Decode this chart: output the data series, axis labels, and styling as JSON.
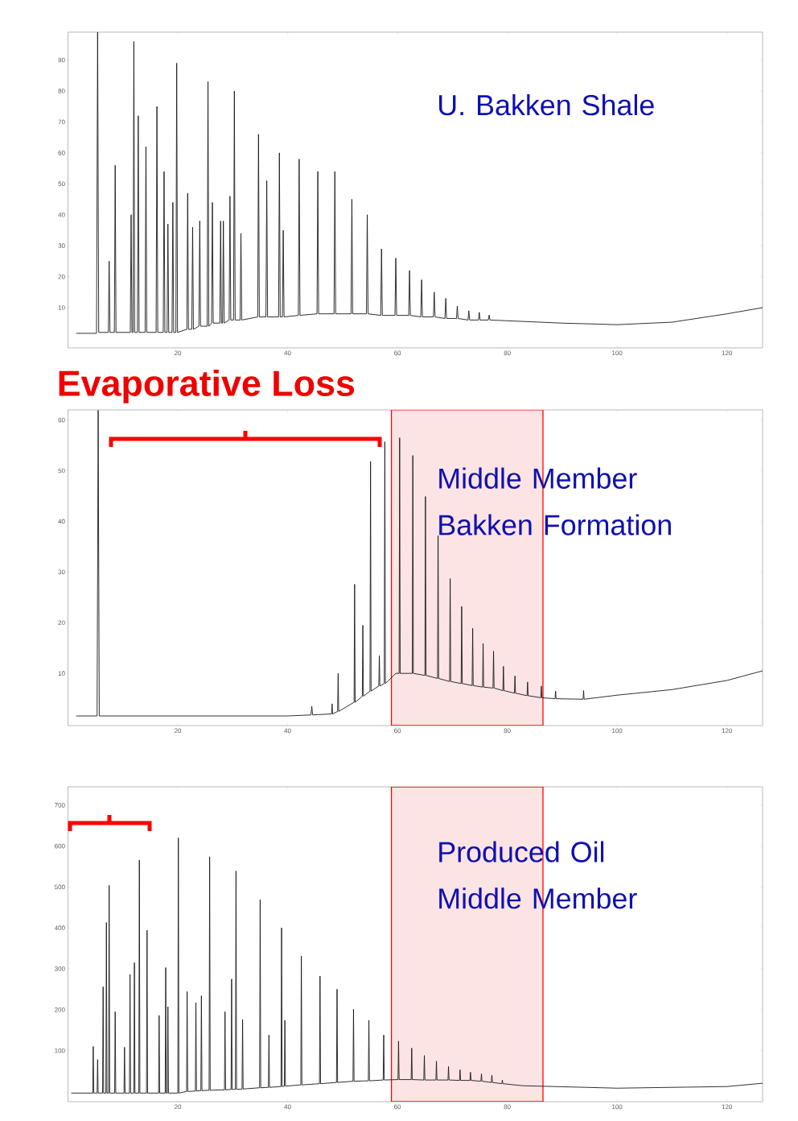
{
  "chart_data": [
    {
      "type": "line",
      "xlim": [
        0,
        126.5
      ],
      "ylim": [
        -3,
        99
      ],
      "xticks": [
        20,
        40,
        60,
        80,
        100,
        120
      ],
      "yticks": [
        10,
        20,
        30,
        40,
        50,
        60,
        70,
        80,
        90
      ],
      "annotations": [
        "U. Bakken Shale"
      ],
      "x": [
        1.5,
        5.2,
        5.4,
        5.6,
        7.35,
        7.5,
        7.65,
        8.45,
        8.6,
        8.75,
        11.35,
        11.5,
        11.65,
        11.85,
        12.0,
        12.15,
        12.65,
        12.8,
        12.95,
        14.05,
        14.2,
        14.35,
        16.05,
        16.2,
        16.35,
        17.35,
        17.5,
        17.65,
        18.05,
        18.2,
        18.35,
        18.95,
        19.1,
        19.25,
        19.65,
        19.8,
        19.95,
        21.65,
        21.8,
        21.95,
        22.55,
        22.7,
        22.85,
        23.85,
        24.0,
        24.15,
        25.35,
        25.5,
        25.65,
        26.15,
        26.3,
        26.45,
        27.65,
        27.8,
        27.95,
        28.15,
        28.3,
        28.45,
        29.35,
        29.5,
        29.65,
        30.15,
        30.3,
        30.45,
        31.35,
        31.5,
        31.65,
        34.55,
        34.7,
        34.85,
        36.05,
        36.2,
        36.35,
        38.35,
        38.5,
        38.65,
        39.05,
        39.2,
        39.35,
        41.95,
        42.1,
        42.25,
        45.35,
        45.5,
        45.65,
        48.45,
        48.6,
        48.75,
        51.55,
        51.7,
        51.85,
        54.35,
        54.5,
        54.65,
        56.95,
        57.1,
        57.25,
        59.55,
        59.7,
        59.85,
        62.05,
        62.2,
        62.35,
        64.25,
        64.4,
        64.55,
        66.55,
        66.7,
        66.85,
        68.65,
        68.8,
        68.95,
        70.75,
        70.9,
        71.05,
        72.85,
        73.0,
        73.15,
        74.75,
        74.9,
        75.05,
        76.55,
        76.7,
        76.85,
        90,
        100,
        110,
        120,
        126.5
      ],
      "series": [
        {
          "color": "#1a1a1a",
          "values": [
            1.7,
            1.7,
            99,
            2,
            2,
            25,
            2,
            2,
            56,
            2,
            2,
            40,
            2,
            2,
            96,
            2,
            2,
            72,
            2,
            2,
            62,
            2,
            2,
            75,
            2,
            2,
            54,
            2,
            2,
            37,
            2,
            2,
            44,
            2,
            2,
            89,
            2,
            3,
            47,
            3,
            3,
            36,
            3,
            4,
            38,
            4,
            4,
            83,
            4,
            5,
            44,
            5,
            5,
            38,
            5,
            5,
            38,
            5,
            6,
            46,
            6,
            6,
            80,
            6,
            6,
            34,
            6,
            7,
            66,
            7,
            7,
            51,
            7,
            7,
            60,
            7,
            7,
            35,
            7,
            7.5,
            58,
            7.5,
            8,
            54,
            8,
            8,
            54,
            8,
            8,
            45,
            8,
            8,
            40,
            8,
            7.5,
            29,
            7.5,
            7.5,
            26,
            7.5,
            7.5,
            22,
            7.5,
            7,
            19,
            7,
            7,
            15,
            7,
            6.5,
            13,
            6.5,
            6.5,
            10.5,
            6.5,
            6,
            9,
            6,
            6,
            8.5,
            6,
            6,
            7.6,
            6,
            5,
            4.5,
            5.3,
            8,
            10
          ]
        }
      ]
    },
    {
      "type": "line",
      "title": "Evaporative Loss",
      "xlim": [
        0,
        126.5
      ],
      "ylim": [
        -0.3,
        62
      ],
      "xticks": [
        20,
        40,
        60,
        80,
        100,
        120
      ],
      "yticks": [
        10,
        20,
        30,
        40,
        50,
        60
      ],
      "annotations": [
        "Middle Member Bakken Formation"
      ],
      "bands": [
        {
          "axis": "x",
          "from": 58.9,
          "to": 86.5,
          "color": "#fde4e4"
        }
      ],
      "x": [
        1.5,
        5.3,
        5.5,
        5.7,
        40,
        44.25,
        44.4,
        44.55,
        48.0,
        48.1,
        48.2,
        49.1,
        49.2,
        49.3,
        52.1,
        52.2,
        52.3,
        53.6,
        53.7,
        53.8,
        55.0,
        55.1,
        55.2,
        56.6,
        56.7,
        56.8,
        57.6,
        57.7,
        57.8,
        59.7,
        60.3,
        60.4,
        60.5,
        62.7,
        62.8,
        62.9,
        65.0,
        65.1,
        65.2,
        67.3,
        67.4,
        67.5,
        69.5,
        69.6,
        69.7,
        71.6,
        71.7,
        71.8,
        73.6,
        73.7,
        73.8,
        75.5,
        75.6,
        75.7,
        77.4,
        77.5,
        77.6,
        79.2,
        79.3,
        79.4,
        81.3,
        81.4,
        81.5,
        83.6,
        83.7,
        83.8,
        86.1,
        86.2,
        86.3,
        88.7,
        88.8,
        88.9,
        93.8,
        93.9,
        94.0,
        100,
        110,
        120,
        126.5
      ],
      "series": [
        {
          "color": "#1a1a1a",
          "values": [
            1.6,
            1.6,
            61.9,
            1.6,
            1.6,
            1.8,
            3.5,
            1.8,
            2,
            4.0,
            2,
            2.5,
            10,
            2.5,
            4.3,
            27.6,
            4.3,
            5.5,
            19.5,
            5.5,
            6.5,
            51.8,
            6.5,
            7.5,
            13.5,
            7.5,
            8,
            55.7,
            8,
            10,
            10,
            56.5,
            10,
            10,
            53,
            10,
            9.6,
            44.9,
            9.6,
            9,
            37.2,
            9,
            8.4,
            28.7,
            8.4,
            8,
            23.2,
            8,
            7.6,
            18.9,
            7.6,
            7.3,
            15.9,
            7.3,
            7.1,
            14.4,
            7.1,
            6.6,
            11.4,
            6.6,
            6.1,
            9.5,
            6.1,
            5.6,
            8.3,
            5.6,
            5.2,
            7.5,
            5.2,
            5.0,
            6.5,
            5.0,
            4.9,
            6.6,
            4.9,
            5.7,
            6.8,
            8.6,
            10.5
          ]
        }
      ]
    },
    {
      "type": "line",
      "xlim": [
        0,
        126.5
      ],
      "ylim": [
        -25,
        745
      ],
      "xticks": [
        20,
        40,
        60,
        80,
        100,
        120
      ],
      "yticks": [
        100,
        200,
        300,
        400,
        500,
        600,
        700
      ],
      "annotations": [
        "Produced Oil Middle Member"
      ],
      "bands": [
        {
          "axis": "x",
          "from": 58.9,
          "to": 86.5,
          "color": "#fde4e4"
        }
      ],
      "x": [
        0.6,
        4.5,
        4.6,
        4.7,
        5.3,
        5.4,
        5.5,
        6.3,
        6.4,
        6.5,
        6.9,
        7.0,
        7.1,
        7.4,
        7.5,
        7.6,
        8.5,
        8.6,
        8.7,
        10.2,
        10.3,
        10.4,
        11.2,
        11.3,
        11.4,
        12.0,
        12.1,
        12.2,
        12.9,
        13.0,
        13.1,
        14.3,
        14.4,
        14.5,
        16.5,
        16.6,
        16.7,
        17.7,
        17.8,
        17.9,
        18.1,
        18.2,
        18.3,
        20.0,
        20.1,
        20.2,
        21.6,
        21.7,
        21.8,
        23.2,
        23.3,
        23.4,
        24.2,
        24.3,
        24.4,
        25.7,
        25.8,
        25.9,
        28.5,
        28.6,
        28.7,
        29.7,
        29.8,
        29.9,
        30.5,
        30.6,
        30.7,
        31.7,
        31.8,
        31.9,
        34.9,
        35.0,
        35.1,
        36.5,
        36.6,
        36.7,
        38.8,
        38.9,
        39.0,
        39.4,
        39.5,
        39.6,
        42.4,
        42.5,
        42.6,
        45.8,
        45.9,
        46.0,
        48.9,
        49.0,
        49.1,
        51.9,
        52.0,
        52.1,
        54.7,
        54.8,
        54.9,
        57.4,
        57.5,
        57.6,
        60.1,
        60.2,
        60.3,
        62.5,
        62.6,
        62.7,
        64.8,
        64.9,
        65.0,
        67.0,
        67.1,
        67.2,
        69.2,
        69.3,
        69.4,
        71.3,
        71.4,
        71.5,
        73.2,
        73.3,
        73.4,
        75.2,
        75.3,
        75.4,
        77.1,
        77.2,
        77.3,
        79.0,
        79.1,
        79.2,
        82.8,
        100,
        120,
        126.5
      ],
      "series": [
        {
          "color": "#1a1a1a",
          "values": [
            -4,
            -4,
            110,
            -4,
            -4,
            78,
            -4,
            -4,
            256,
            -4,
            -4,
            413,
            -4,
            -4,
            504,
            -4,
            -4,
            195,
            -4,
            -4,
            108,
            -4,
            -4,
            286,
            -4,
            -4,
            315,
            -4,
            -4,
            566,
            -4,
            -4,
            394,
            -4,
            -4,
            186,
            -4,
            -4,
            303,
            -4,
            -4,
            207,
            -4,
            -4,
            620,
            -4,
            0,
            244,
            0,
            1,
            217,
            1,
            2,
            234,
            2,
            3,
            574,
            3,
            4,
            195,
            4,
            5,
            275,
            5,
            5,
            539,
            5,
            6,
            176,
            6,
            9,
            469,
            9,
            10,
            138,
            10,
            12,
            400,
            12,
            13,
            174,
            13,
            16,
            331,
            16,
            19,
            282,
            19,
            22,
            250,
            22,
            25,
            201,
            25,
            26,
            174,
            26,
            28,
            138,
            28,
            29,
            123,
            29,
            29,
            106,
            29,
            28,
            88,
            28,
            28,
            74,
            28,
            28,
            61,
            28,
            27,
            53,
            27,
            27,
            47,
            27,
            25,
            43,
            25,
            22,
            40,
            22,
            19,
            28,
            19,
            14,
            8,
            12,
            20
          ]
        }
      ]
    }
  ]
}
